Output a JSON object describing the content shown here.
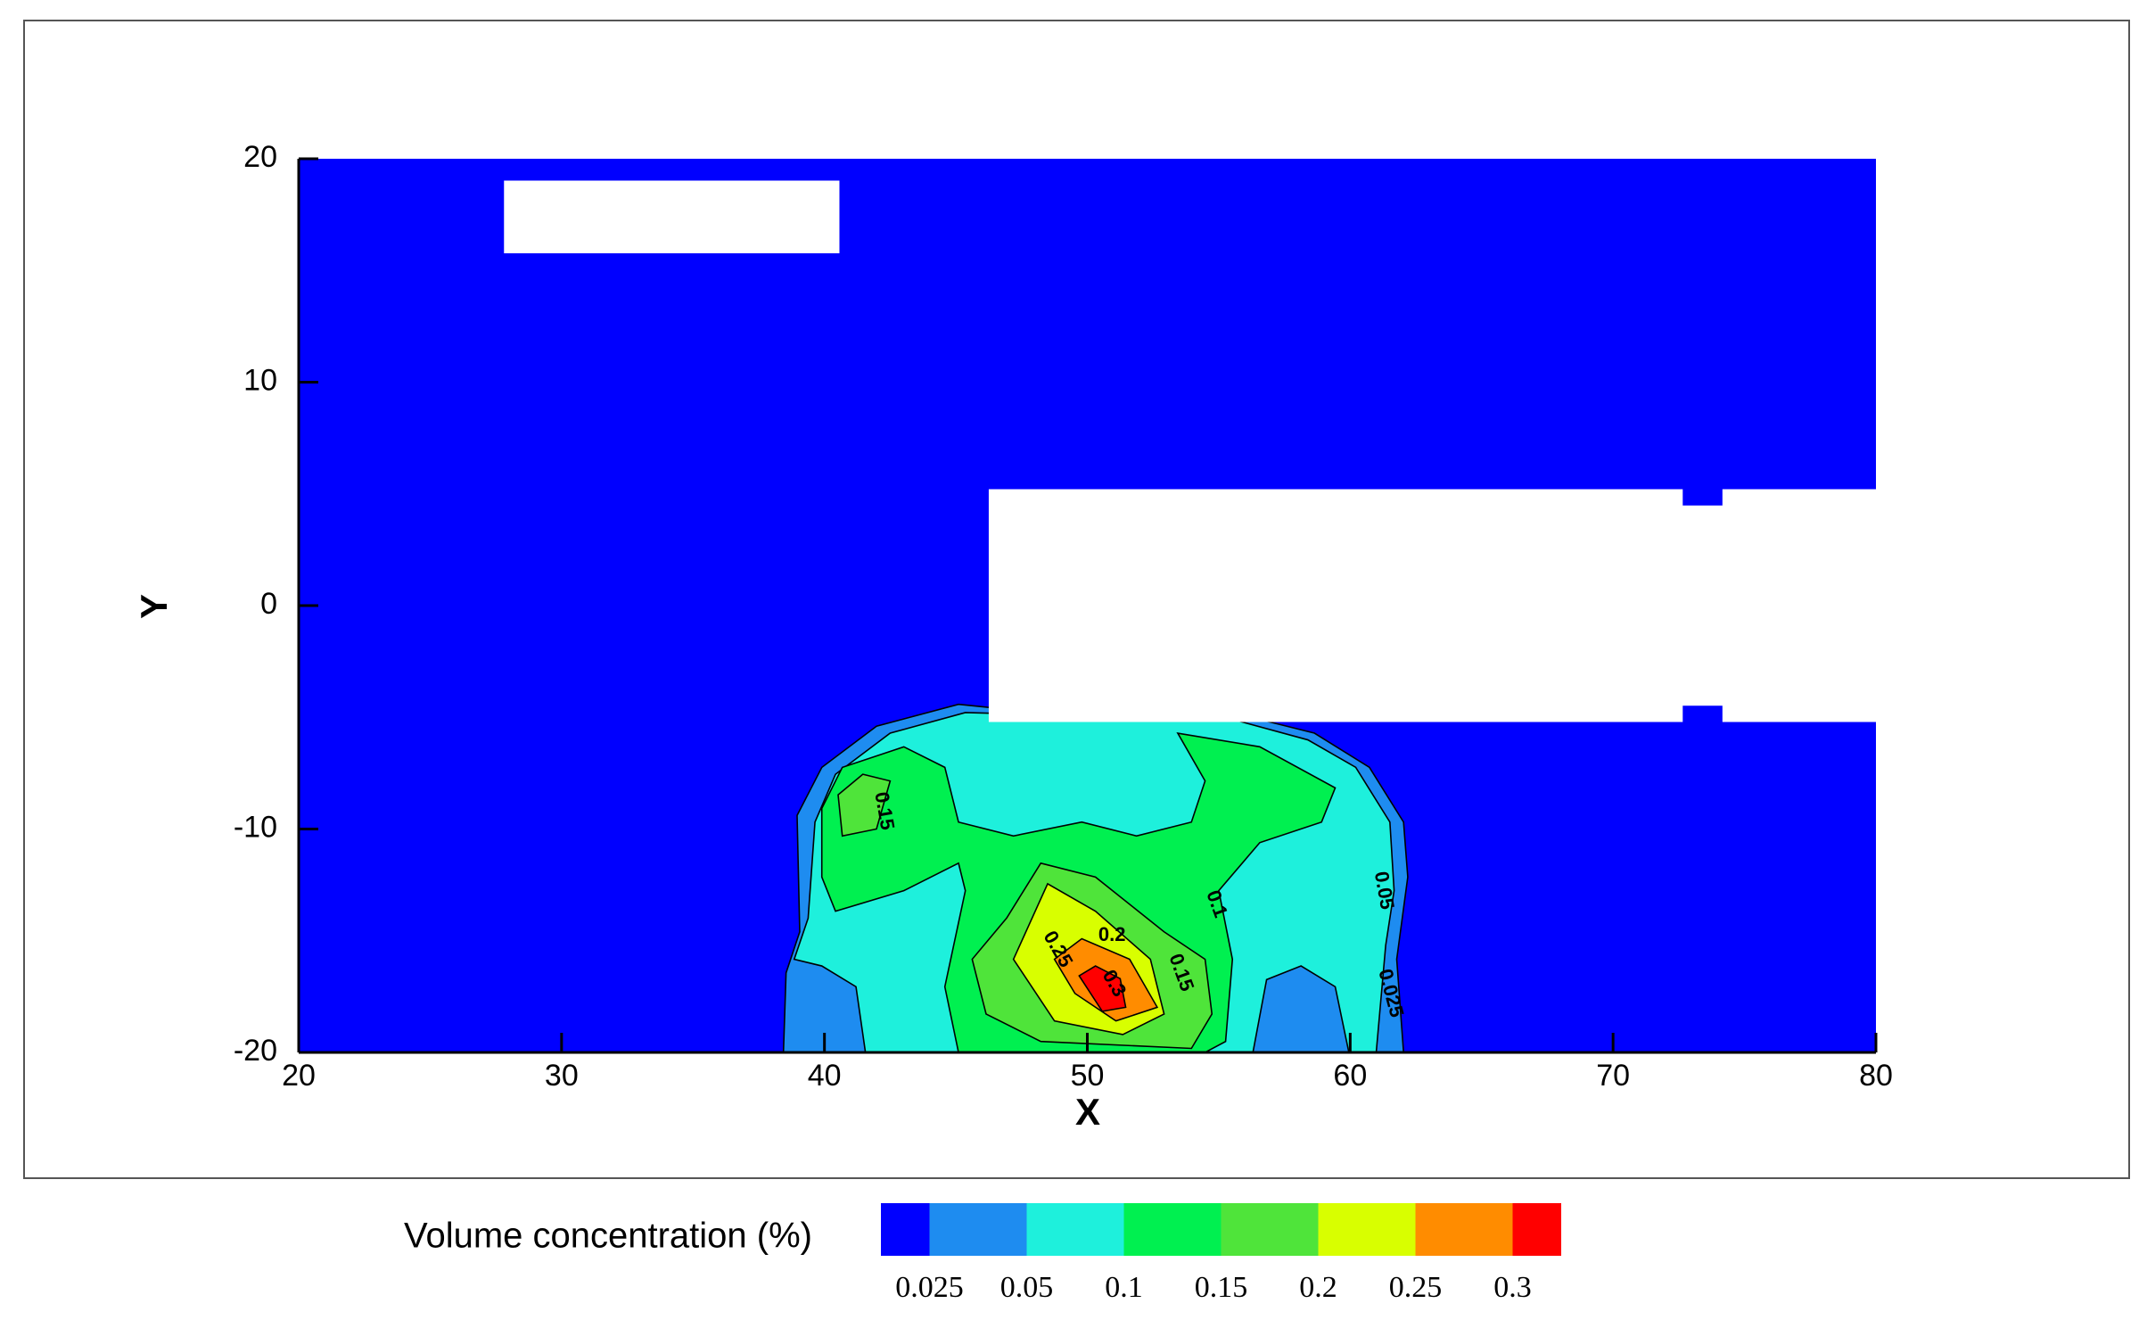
{
  "chart_data": {
    "type": "contour",
    "x_label": "X",
    "y_label": "Y",
    "xlim": [
      20,
      80
    ],
    "ylim": [
      -20,
      20
    ],
    "xticks": [
      20,
      30,
      40,
      50,
      60,
      70,
      80
    ],
    "yticks": [
      -20,
      -10,
      0,
      10,
      20
    ],
    "colorbar_title": "Volume concentration (%)",
    "levels": [
      0.025,
      0.05,
      0.1,
      0.15,
      0.2,
      0.25,
      0.3
    ],
    "colors": [
      "#0000ff",
      "#1e8cf0",
      "#1ef0dc",
      "#00f050",
      "#4fe43a",
      "#d8ff00",
      "#ff8c00",
      "#ff0000"
    ],
    "regions": [
      {
        "level": 0.025,
        "polygon": [
          [
            38.44,
            -20
          ],
          [
            38.54,
            -16.44
          ],
          [
            39.06,
            -14.6
          ],
          [
            38.96,
            -9.39
          ],
          [
            39.9,
            -7.24
          ],
          [
            41.98,
            -5.4
          ],
          [
            45.1,
            -4.42
          ],
          [
            48.23,
            -4.79
          ],
          [
            55.52,
            -4.79
          ],
          [
            58.64,
            -5.71
          ],
          [
            60.73,
            -7.24
          ],
          [
            62.03,
            -9.69
          ],
          [
            62.19,
            -12.15
          ],
          [
            61.77,
            -15.83
          ],
          [
            62.03,
            -20
          ]
        ]
      },
      {
        "level": 0.05,
        "polygon": [
          [
            41.56,
            -20
          ],
          [
            41.2,
            -17.06
          ],
          [
            39.9,
            -16.13
          ],
          [
            38.85,
            -15.83
          ],
          [
            39.38,
            -13.99
          ],
          [
            39.64,
            -9.69
          ],
          [
            40.42,
            -7.55
          ],
          [
            42.5,
            -5.71
          ],
          [
            45.36,
            -4.79
          ],
          [
            55.52,
            -5.09
          ],
          [
            58.39,
            -6.01
          ],
          [
            60.21,
            -7.24
          ],
          [
            61.51,
            -9.69
          ],
          [
            61.67,
            -12.76
          ],
          [
            61.35,
            -15.21
          ],
          [
            60.99,
            -20
          ],
          [
            59.95,
            -20
          ],
          [
            59.43,
            -17.06
          ],
          [
            58.13,
            -16.13
          ],
          [
            56.82,
            -16.74
          ],
          [
            56.3,
            -20
          ]
        ]
      },
      {
        "level": 0.1,
        "polygon": [
          [
            39.9,
            -9.08
          ],
          [
            40.68,
            -7.24
          ],
          [
            43.02,
            -6.32
          ],
          [
            44.58,
            -7.24
          ],
          [
            45.1,
            -9.69
          ],
          [
            47.19,
            -10.31
          ],
          [
            49.79,
            -9.69
          ],
          [
            51.87,
            -10.31
          ],
          [
            53.96,
            -9.69
          ],
          [
            54.48,
            -7.85
          ],
          [
            53.44,
            -5.71
          ],
          [
            56.56,
            -6.32
          ],
          [
            59.43,
            -8.16
          ],
          [
            58.91,
            -9.69
          ],
          [
            56.56,
            -10.61
          ],
          [
            55.0,
            -12.76
          ],
          [
            55.52,
            -15.83
          ],
          [
            55.26,
            -19.51
          ],
          [
            54.48,
            -20
          ],
          [
            45.1,
            -20
          ],
          [
            44.58,
            -17.06
          ],
          [
            45.36,
            -12.76
          ],
          [
            45.1,
            -11.53
          ],
          [
            43.02,
            -12.76
          ],
          [
            40.42,
            -13.68
          ],
          [
            39.9,
            -12.15
          ]
        ]
      },
      {
        "level": 0.15,
        "polygon": [
          [
            40.52,
            -8.47
          ],
          [
            41.46,
            -7.55
          ],
          [
            42.5,
            -7.85
          ],
          [
            41.98,
            -10.0
          ],
          [
            40.68,
            -10.31
          ]
        ]
      },
      {
        "level": 0.15,
        "polygon": [
          [
            46.93,
            -13.99
          ],
          [
            48.23,
            -11.53
          ],
          [
            50.31,
            -12.15
          ],
          [
            52.92,
            -14.6
          ],
          [
            54.48,
            -15.83
          ],
          [
            54.74,
            -18.28
          ],
          [
            53.96,
            -19.82
          ],
          [
            48.23,
            -19.51
          ],
          [
            46.15,
            -18.28
          ],
          [
            45.62,
            -15.83
          ]
        ]
      },
      {
        "level": 0.2,
        "polygon": [
          [
            47.19,
            -15.83
          ],
          [
            48.49,
            -12.45
          ],
          [
            50.31,
            -13.68
          ],
          [
            52.4,
            -15.83
          ],
          [
            52.92,
            -18.28
          ],
          [
            51.35,
            -19.2
          ],
          [
            48.75,
            -18.59
          ]
        ]
      },
      {
        "level": 0.25,
        "polygon": [
          [
            48.75,
            -15.83
          ],
          [
            49.79,
            -14.91
          ],
          [
            51.61,
            -15.83
          ],
          [
            52.66,
            -17.98
          ],
          [
            51.09,
            -18.59
          ],
          [
            49.53,
            -17.36
          ]
        ]
      },
      {
        "level": 0.3,
        "polygon": [
          [
            49.69,
            -16.57
          ],
          [
            50.31,
            -16.13
          ],
          [
            51.25,
            -16.7
          ],
          [
            51.46,
            -17.98
          ],
          [
            50.57,
            -18.16
          ]
        ]
      }
    ],
    "obstacles": [
      [
        [
          27.81,
          19.02
        ],
        [
          40.57,
          19.02
        ],
        [
          40.57,
          15.77
        ],
        [
          27.81,
          15.77
        ]
      ],
      [
        [
          46.25,
          5.21
        ],
        [
          72.65,
          5.21
        ],
        [
          72.65,
          4.48
        ],
        [
          74.16,
          4.48
        ],
        [
          74.16,
          5.21
        ],
        [
          80,
          5.21
        ],
        [
          80,
          -5.21
        ],
        [
          74.16,
          -5.21
        ],
        [
          74.16,
          -4.48
        ],
        [
          72.65,
          -4.48
        ],
        [
          72.65,
          -5.21
        ],
        [
          46.25,
          -5.21
        ]
      ]
    ],
    "contour_labels": [
      {
        "value": 0.15,
        "x": 42.24,
        "y": -9.2
      },
      {
        "value": 0.1,
        "x": 54.89,
        "y": -13.37
      },
      {
        "value": 0.05,
        "x": 61.25,
        "y": -12.76
      },
      {
        "value": 0.025,
        "x": 61.51,
        "y": -17.36
      },
      {
        "value": 0.2,
        "x": 50.94,
        "y": -14.78
      },
      {
        "value": 0.25,
        "x": 48.85,
        "y": -15.4
      },
      {
        "value": 0.3,
        "x": 50.99,
        "y": -16.93
      },
      {
        "value": 0.15,
        "x": 53.54,
        "y": -16.44
      }
    ]
  }
}
